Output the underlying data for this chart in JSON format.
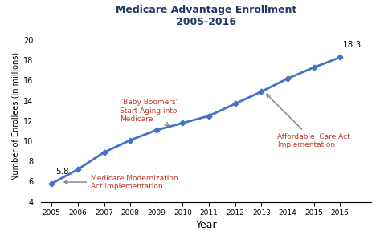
{
  "title_line1": "Medicare Advantage Enrollment",
  "title_line2": "2005-2016",
  "xlabel": "Year",
  "ylabel": "Number of Enrollees (in millions)",
  "years": [
    2005,
    2006,
    2007,
    2008,
    2009,
    2010,
    2011,
    2012,
    2013,
    2014,
    2015,
    2016
  ],
  "values": [
    5.8,
    7.2,
    8.9,
    10.1,
    11.1,
    11.8,
    12.5,
    13.7,
    14.9,
    16.2,
    17.3,
    18.3
  ],
  "line_color": "#4472c4",
  "marker_color": "#4472c4",
  "annotation_color_red": "#c0392b",
  "arrow_color": "#7f7f7f",
  "ylim": [
    4,
    21
  ],
  "yticks": [
    4,
    6,
    8,
    10,
    12,
    14,
    16,
    18,
    20
  ],
  "background_color": "#ffffff",
  "label_modernization_text": "Medicare Modernization\nAct Implementation",
  "label_baby_text": "\"Baby Boomers\"\nStart Aging into\nMedicare",
  "label_aca_text": "Affordable  Care Act\nImplementation"
}
